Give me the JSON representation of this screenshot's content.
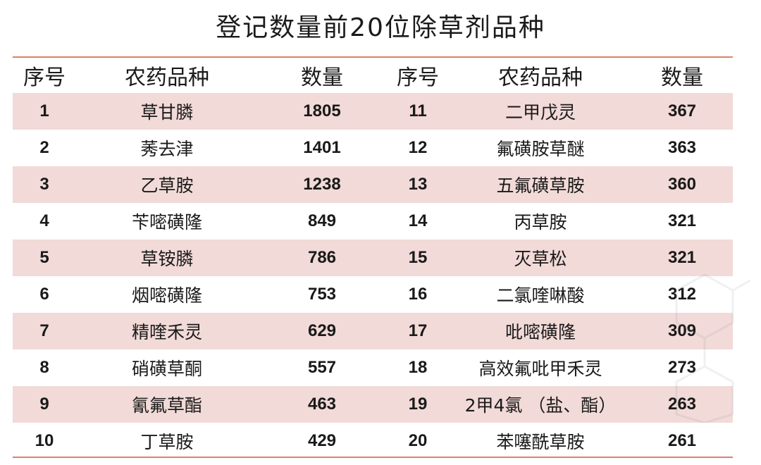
{
  "title": "登记数量前20位除草剂品种",
  "headers": [
    "序号",
    "农药品种",
    "数量",
    "序号",
    "农药品种",
    "数量"
  ],
  "rows": [
    {
      "no1": "1",
      "name1": "草甘膦",
      "count1": "1805",
      "no2": "11",
      "name2": "二甲戊灵",
      "count2": "367"
    },
    {
      "no1": "2",
      "name1": "莠去津",
      "count1": "1401",
      "no2": "12",
      "name2": "氟磺胺草醚",
      "count2": "363"
    },
    {
      "no1": "3",
      "name1": "乙草胺",
      "count1": "1238",
      "no2": "13",
      "name2": "五氟磺草胺",
      "count2": "360"
    },
    {
      "no1": "4",
      "name1": "苄嘧磺隆",
      "count1": "849",
      "no2": "14",
      "name2": "丙草胺",
      "count2": "321"
    },
    {
      "no1": "5",
      "name1": "草铵膦",
      "count1": "786",
      "no2": "15",
      "name2": "灭草松",
      "count2": "321"
    },
    {
      "no1": "6",
      "name1": "烟嘧磺隆",
      "count1": "753",
      "no2": "16",
      "name2": "二氯喹啉酸",
      "count2": "312"
    },
    {
      "no1": "7",
      "name1": "精喹禾灵",
      "count1": "629",
      "no2": "17",
      "name2": "吡嘧磺隆",
      "count2": "309"
    },
    {
      "no1": "8",
      "name1": "硝磺草酮",
      "count1": "557",
      "no2": "18",
      "name2": "高效氟吡甲禾灵",
      "count2": "273"
    },
    {
      "no1": "9",
      "name1": "氰氟草酯",
      "count1": "463",
      "no2": "19",
      "name2": "2甲4氯 （盐、酯）",
      "count2": "263"
    },
    {
      "no1": "10",
      "name1": "丁草胺",
      "count1": "429",
      "no2": "20",
      "name2": "苯噻酰草胺",
      "count2": "261"
    }
  ],
  "colors": {
    "accent_rule": "#d9826a",
    "row_shade": "#f1dad7"
  }
}
